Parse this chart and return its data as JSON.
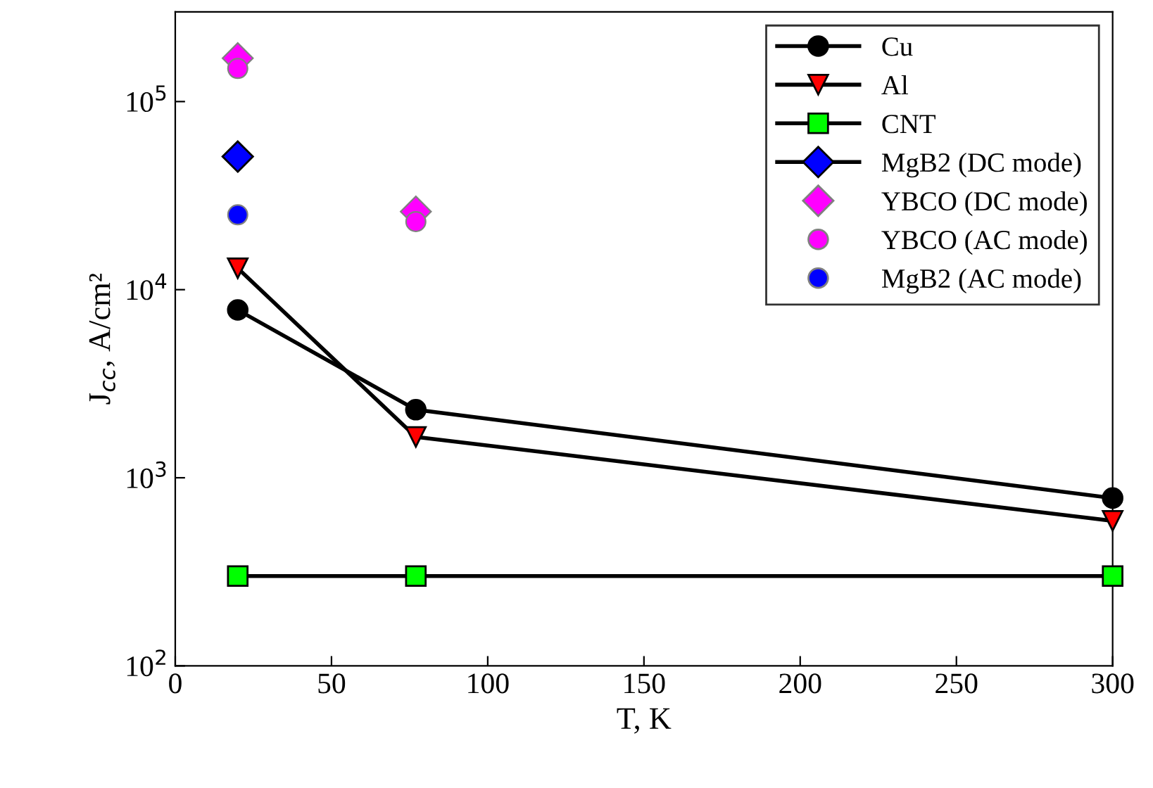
{
  "chart_data": {
    "type": "line",
    "xlabel": "T, K",
    "ylabel": "J$_{cc}$, A/cm²",
    "xlim": [
      0,
      300
    ],
    "xticks": [
      0,
      50,
      100,
      150,
      200,
      250,
      300
    ],
    "ylim": [
      100,
      300000
    ],
    "log": "y",
    "yticks": [
      {
        "value": 100,
        "label": "10$^{2}$"
      },
      {
        "value": 1000,
        "label": "10$^{3}$"
      },
      {
        "value": 10000,
        "label": "10$^{4}$"
      },
      {
        "value": 100000,
        "label": "10$^{5}$"
      }
    ],
    "legend": "top right",
    "grid": false,
    "series": [
      {
        "name": "Cu",
        "marker": "circle",
        "color": "#000000",
        "x": [
          20,
          77,
          300
        ],
        "values": [
          7800,
          2300,
          780
        ]
      },
      {
        "name": "Al",
        "marker": "triangle",
        "color": "#ff0000",
        "x": [
          20,
          77,
          300
        ],
        "values": [
          13000,
          1650,
          590
        ]
      },
      {
        "name": "CNT",
        "marker": "square",
        "color": "#00ff00",
        "x": [
          20,
          77,
          300
        ],
        "values": [
          300,
          300,
          300
        ]
      },
      {
        "name": "MgB2 (DC mode)",
        "marker": "diamond",
        "color": "#0000ff",
        "x": [
          20
        ],
        "values": [
          51000
        ]
      },
      {
        "name": "YBCO (DC mode)",
        "type": "scatter",
        "marker": "diamond",
        "color": "#ff00ff",
        "x": [
          20,
          77
        ],
        "values": [
          170000,
          26000
        ]
      },
      {
        "name": "YBCO (AC mode)",
        "type": "scatter",
        "marker": "circle",
        "color": "#ff00ff",
        "x": [
          20,
          77
        ],
        "values": [
          150000,
          23000
        ]
      },
      {
        "name": "MgB2 (AC mode)",
        "type": "scatter",
        "marker": "circle",
        "color": "#0000ff",
        "x": [
          20
        ],
        "values": [
          25000
        ]
      }
    ]
  }
}
